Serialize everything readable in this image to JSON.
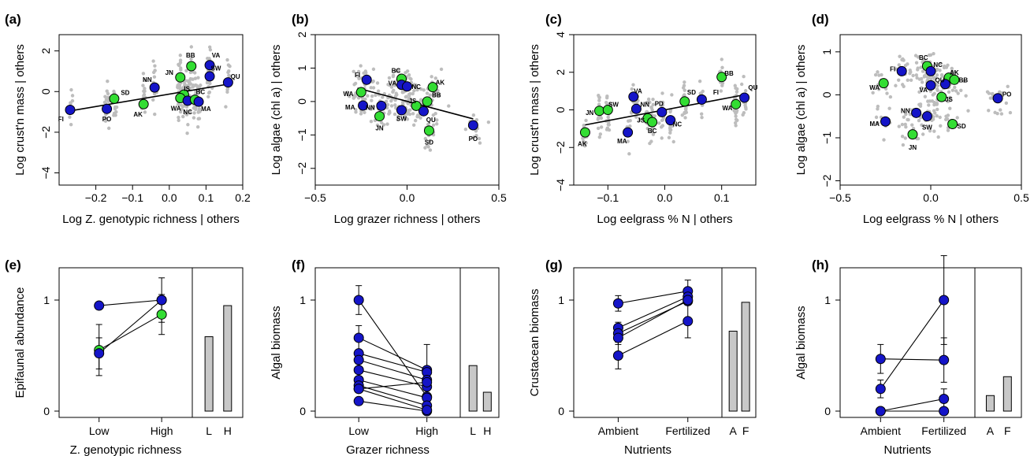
{
  "colors": {
    "blue": "#1515c8",
    "green": "#33dd33",
    "gray": "#bdbdbd",
    "bar": "#c8c8c8"
  },
  "chart_data": [
    {
      "panel": "(a)",
      "type": "scatter",
      "xlabel": "Log Z. genotypic richness | others",
      "ylabel": "Log crust'n mass | others",
      "xlim": [
        -0.3,
        0.2
      ],
      "ylim": [
        -4.6,
        2.8
      ],
      "xticks": [
        -0.2,
        -0.1,
        0.0,
        0.1,
        0.2
      ],
      "xticklabels": [
        "−0.2",
        "−0.1",
        "0.0",
        "0.1",
        "0.2"
      ],
      "yticks": [
        -4,
        -2,
        0,
        2
      ],
      "yticklabels": [
        "−4",
        "−2",
        "0",
        "2"
      ],
      "fit": [
        [
          -0.27,
          -0.95
        ],
        [
          0.155,
          0.35
        ]
      ],
      "points": [
        {
          "site": "FI",
          "x": -0.27,
          "y": -0.9,
          "color": "blue",
          "lx": -0.025,
          "ly": -0.45
        },
        {
          "site": "PO",
          "x": -0.17,
          "y": -0.85,
          "color": "blue",
          "lx": 0.0,
          "ly": -0.5
        },
        {
          "site": "SD",
          "x": -0.15,
          "y": -0.35,
          "color": "green",
          "lx": 0.03,
          "ly": 0.3
        },
        {
          "site": "AK",
          "x": -0.07,
          "y": -0.62,
          "color": "green",
          "lx": -0.015,
          "ly": -0.5
        },
        {
          "site": "NN",
          "x": -0.04,
          "y": 0.2,
          "color": "blue",
          "lx": -0.02,
          "ly": 0.4
        },
        {
          "site": "JN",
          "x": 0.03,
          "y": 0.7,
          "color": "green",
          "lx": -0.03,
          "ly": 0.25
        },
        {
          "site": "BB",
          "x": 0.06,
          "y": 1.25,
          "color": "green",
          "lx": -0.002,
          "ly": 0.55
        },
        {
          "site": "IS",
          "x": 0.04,
          "y": -0.15,
          "color": "green",
          "lx": 0.008,
          "ly": 0.3
        },
        {
          "site": "WA",
          "x": 0.03,
          "y": -0.32,
          "color": "green",
          "lx": -0.012,
          "ly": -0.5
        },
        {
          "site": "NC",
          "x": 0.05,
          "y": -0.45,
          "color": "blue",
          "lx": 0.0,
          "ly": -0.55
        },
        {
          "site": "BC",
          "x": 0.07,
          "y": -0.4,
          "color": "green",
          "lx": 0.015,
          "ly": 0.4
        },
        {
          "site": "MA",
          "x": 0.08,
          "y": -0.5,
          "color": "blue",
          "lx": 0.02,
          "ly": -0.35
        },
        {
          "site": "VA",
          "x": 0.11,
          "y": 1.3,
          "color": "blue",
          "lx": 0.017,
          "ly": 0.5
        },
        {
          "site": "SW",
          "x": 0.11,
          "y": 0.75,
          "color": "blue",
          "lx": 0.017,
          "ly": 0.4
        },
        {
          "site": "QU",
          "x": 0.16,
          "y": 0.45,
          "color": "blue",
          "lx": 0.02,
          "ly": 0.3
        }
      ]
    },
    {
      "panel": "(b)",
      "type": "scatter",
      "xlabel": "Log grazer richness | others",
      "ylabel": "Log algae (chl a) | others",
      "xlim": [
        -0.5,
        0.5
      ],
      "ylim": [
        -2.5,
        2.0
      ],
      "xticks": [
        -0.5,
        0.0,
        0.5
      ],
      "xticklabels": [
        "−0.5",
        "0.0",
        "0.5"
      ],
      "yticks": [
        -2,
        -1,
        0,
        1,
        2
      ],
      "yticklabels": [
        "−2",
        "−1",
        "0",
        "1",
        "2"
      ],
      "fit": [
        [
          -0.27,
          0.4
        ],
        [
          0.36,
          -0.52
        ]
      ],
      "points": [
        {
          "site": "FI",
          "x": -0.22,
          "y": 0.65,
          "color": "blue",
          "lx": -0.05,
          "ly": 0.15
        },
        {
          "site": "WA",
          "x": -0.25,
          "y": 0.28,
          "color": "green",
          "lx": -0.07,
          "ly": -0.05
        },
        {
          "site": "MA",
          "x": -0.24,
          "y": -0.12,
          "color": "blue",
          "lx": -0.07,
          "ly": -0.05
        },
        {
          "site": "BC",
          "x": -0.03,
          "y": 0.68,
          "color": "green",
          "lx": -0.03,
          "ly": 0.25
        },
        {
          "site": "VA",
          "x": -0.03,
          "y": 0.5,
          "color": "blue",
          "lx": -0.05,
          "ly": 0.05
        },
        {
          "site": "NC",
          "x": 0.0,
          "y": 0.45,
          "color": "blue",
          "lx": 0.05,
          "ly": 0.0
        },
        {
          "site": "AK",
          "x": 0.14,
          "y": 0.43,
          "color": "green",
          "lx": 0.04,
          "ly": 0.15
        },
        {
          "site": "BB",
          "x": 0.11,
          "y": 0.0,
          "color": "green",
          "lx": 0.05,
          "ly": 0.2
        },
        {
          "site": "NN",
          "x": -0.14,
          "y": -0.13,
          "color": "blue",
          "lx": -0.06,
          "ly": -0.05
        },
        {
          "site": "JS",
          "x": 0.05,
          "y": -0.13,
          "color": "green",
          "lx": -0.02,
          "ly": 0.15
        },
        {
          "site": "SW",
          "x": -0.03,
          "y": -0.26,
          "color": "blue",
          "lx": 0.0,
          "ly": -0.25
        },
        {
          "site": "JN",
          "x": -0.15,
          "y": -0.44,
          "color": "green",
          "lx": 0.0,
          "ly": -0.35
        },
        {
          "site": "QU",
          "x": 0.09,
          "y": -0.29,
          "color": "blue",
          "lx": 0.04,
          "ly": -0.25
        },
        {
          "site": "SD",
          "x": 0.12,
          "y": -0.87,
          "color": "green",
          "lx": 0.0,
          "ly": -0.35
        },
        {
          "site": "PO",
          "x": 0.36,
          "y": -0.71,
          "color": "blue",
          "lx": 0.0,
          "ly": -0.4
        }
      ]
    },
    {
      "panel": "(c)",
      "type": "scatter",
      "xlabel": "Log eelgrass % N | others",
      "ylabel": "Log crust'n mass | others",
      "xlim": [
        -0.16,
        0.16
      ],
      "ylim": [
        -4.0,
        4.0
      ],
      "xticks": [
        -0.1,
        0.0,
        0.1
      ],
      "xticklabels": [
        "−0.1",
        "0.0",
        "0.1"
      ],
      "yticks": [
        -4,
        -2,
        0,
        2,
        4
      ],
      "yticklabels": [
        "−4",
        "−2",
        "0",
        "2",
        "4"
      ],
      "fit": [
        [
          -0.14,
          -0.8
        ],
        [
          0.14,
          0.8
        ]
      ],
      "points": [
        {
          "site": "AK",
          "x": -0.14,
          "y": -1.2,
          "color": "green",
          "lx": -0.005,
          "ly": -0.6
        },
        {
          "site": "JN",
          "x": -0.115,
          "y": -0.05,
          "color": "green",
          "lx": -0.017,
          "ly": -0.1
        },
        {
          "site": "SW",
          "x": -0.1,
          "y": 0.0,
          "color": "green",
          "lx": 0.01,
          "ly": 0.3
        },
        {
          "site": "MA",
          "x": -0.065,
          "y": -1.2,
          "color": "blue",
          "lx": -0.01,
          "ly": -0.45
        },
        {
          "site": "VA",
          "x": -0.055,
          "y": 0.7,
          "color": "blue",
          "lx": 0.008,
          "ly": 0.3
        },
        {
          "site": "NN",
          "x": -0.05,
          "y": 0.05,
          "color": "blue",
          "lx": 0.015,
          "ly": 0.25
        },
        {
          "site": "JS",
          "x": -0.03,
          "y": -0.45,
          "color": "green",
          "lx": -0.012,
          "ly": -0.1
        },
        {
          "site": "BC",
          "x": -0.022,
          "y": -0.65,
          "color": "green",
          "lx": 0.0,
          "ly": -0.45
        },
        {
          "site": "PD",
          "x": -0.005,
          "y": -0.12,
          "color": "blue",
          "lx": -0.005,
          "ly": 0.45
        },
        {
          "site": "NC",
          "x": 0.01,
          "y": -0.55,
          "color": "blue",
          "lx": 0.012,
          "ly": -0.2
        },
        {
          "site": "SD",
          "x": 0.035,
          "y": 0.45,
          "color": "green",
          "lx": 0.012,
          "ly": 0.5
        },
        {
          "site": "FI",
          "x": 0.065,
          "y": 0.55,
          "color": "blue",
          "lx": 0.025,
          "ly": 0.4
        },
        {
          "site": "BB",
          "x": 0.1,
          "y": 1.75,
          "color": "green",
          "lx": 0.013,
          "ly": 0.2
        },
        {
          "site": "WA",
          "x": 0.125,
          "y": 0.3,
          "color": "green",
          "lx": -0.015,
          "ly": -0.2
        },
        {
          "site": "QU",
          "x": 0.14,
          "y": 0.65,
          "color": "blue",
          "lx": 0.015,
          "ly": 0.55
        }
      ]
    },
    {
      "panel": "(d)",
      "type": "scatter",
      "xlabel": "Log eelgrass % N | others",
      "ylabel": "Log algae (chl a) | others",
      "xlim": [
        -0.5,
        0.5
      ],
      "ylim": [
        -2.1,
        1.4
      ],
      "xticks": [
        -0.5,
        0.0,
        0.5
      ],
      "xticklabels": [
        "−0.5",
        "0.0",
        "0.5"
      ],
      "yticks": [
        -2,
        -1,
        0,
        1
      ],
      "yticklabels": [
        "−2",
        "−1",
        "0",
        "1"
      ],
      "fit": [],
      "points": [
        {
          "site": "FI",
          "x": -0.16,
          "y": 0.55,
          "color": "blue",
          "lx": -0.05,
          "ly": 0.05
        },
        {
          "site": "WA",
          "x": -0.26,
          "y": 0.27,
          "color": "green",
          "lx": -0.05,
          "ly": -0.1
        },
        {
          "site": "BC",
          "x": -0.02,
          "y": 0.67,
          "color": "green",
          "lx": -0.02,
          "ly": 0.2
        },
        {
          "site": "NC",
          "x": 0.0,
          "y": 0.55,
          "color": "blue",
          "lx": 0.04,
          "ly": 0.15
        },
        {
          "site": "AK",
          "x": 0.1,
          "y": 0.4,
          "color": "green",
          "lx": 0.03,
          "ly": 0.12
        },
        {
          "site": "BB",
          "x": 0.13,
          "y": 0.35,
          "color": "green",
          "lx": 0.05,
          "ly": 0.0
        },
        {
          "site": "QU",
          "x": 0.08,
          "y": 0.25,
          "color": "blue",
          "lx": -0.03,
          "ly": 0.1
        },
        {
          "site": "VA",
          "x": 0.0,
          "y": 0.22,
          "color": "blue",
          "lx": -0.04,
          "ly": -0.1
        },
        {
          "site": "JS",
          "x": 0.06,
          "y": -0.05,
          "color": "green",
          "lx": 0.04,
          "ly": -0.05
        },
        {
          "site": "NN",
          "x": -0.08,
          "y": -0.42,
          "color": "blue",
          "lx": -0.06,
          "ly": 0.05
        },
        {
          "site": "SW",
          "x": -0.02,
          "y": -0.5,
          "color": "blue",
          "lx": 0.0,
          "ly": -0.25
        },
        {
          "site": "MA",
          "x": -0.25,
          "y": -0.62,
          "color": "blue",
          "lx": -0.06,
          "ly": -0.05
        },
        {
          "site": "JN",
          "x": -0.1,
          "y": -0.92,
          "color": "green",
          "lx": 0.0,
          "ly": -0.3
        },
        {
          "site": "SD",
          "x": 0.12,
          "y": -0.68,
          "color": "green",
          "lx": 0.05,
          "ly": -0.05
        },
        {
          "site": "PO",
          "x": 0.37,
          "y": -0.08,
          "color": "blue",
          "lx": 0.05,
          "ly": 0.1
        }
      ]
    },
    {
      "panel": "(e)",
      "type": "dot-bar",
      "xlabel": "Z. genotypic richness",
      "ylabel": "Epifaunal abundance",
      "categories": [
        "Low",
        "High"
      ],
      "yticks": [
        0,
        1
      ],
      "yticklabels": [
        "0",
        "1"
      ],
      "ylim": [
        -0.05,
        1.3
      ],
      "series": [
        {
          "color": "blue",
          "values": [
            0.95,
            1.0
          ],
          "err": [
            0.0,
            0.0
          ]
        },
        {
          "color": "green",
          "values": [
            0.55,
            0.87
          ],
          "err": [
            0.23,
            0.18
          ]
        },
        {
          "color": "blue",
          "values": [
            0.52,
            1.0
          ],
          "err": [
            0.14,
            0.2
          ]
        }
      ],
      "bars": {
        "labels": [
          "L",
          "H"
        ],
        "values": [
          0.67,
          0.95
        ]
      }
    },
    {
      "panel": "(f)",
      "type": "dot-bar",
      "xlabel": "Grazer richness",
      "ylabel": "Algal biomass",
      "categories": [
        "Low",
        "High"
      ],
      "yticks": [
        0,
        1
      ],
      "yticklabels": [
        "0",
        "1"
      ],
      "ylim": [
        -0.05,
        1.3
      ],
      "series": [
        {
          "color": "blue",
          "values": [
            1.0,
            0.13
          ],
          "err": [
            0.13,
            0.0
          ]
        },
        {
          "color": "blue",
          "values": [
            0.66,
            0.37
          ],
          "err": [
            0.11,
            0.23
          ]
        },
        {
          "color": "blue",
          "values": [
            0.52,
            0.35
          ],
          "err": [
            0.0,
            0.0
          ]
        },
        {
          "color": "blue",
          "values": [
            0.46,
            0.28
          ],
          "err": [
            0.07,
            0.0
          ]
        },
        {
          "color": "blue",
          "values": [
            0.37,
            0.22
          ],
          "err": [
            0.0,
            0.0
          ]
        },
        {
          "color": "blue",
          "values": [
            0.28,
            0.12
          ],
          "err": [
            0.0,
            0.0
          ]
        },
        {
          "color": "blue",
          "values": [
            0.23,
            0.05
          ],
          "err": [
            0.0,
            0.0
          ]
        },
        {
          "color": "blue",
          "values": [
            0.2,
            0.26
          ],
          "err": [
            0.0,
            0.0
          ]
        },
        {
          "color": "blue",
          "values": [
            0.09,
            0.0
          ],
          "err": [
            0.0,
            0.0
          ]
        },
        {
          "color": "blue",
          "values": [
            0.2,
            0.01
          ],
          "err": [
            0.0,
            0.0
          ]
        }
      ],
      "bars": {
        "labels": [
          "L",
          "H"
        ],
        "values": [
          0.41,
          0.17
        ]
      }
    },
    {
      "panel": "(g)",
      "type": "dot-bar",
      "xlabel": "Nutrients",
      "ylabel": "Crustacean biomass",
      "categories": [
        "Ambient",
        "Fertilized"
      ],
      "yticks": [
        0,
        1
      ],
      "yticklabels": [
        "0",
        "1"
      ],
      "ylim": [
        -0.05,
        1.3
      ],
      "series": [
        {
          "color": "blue",
          "values": [
            0.97,
            1.08
          ],
          "err": [
            0.07,
            0.1
          ]
        },
        {
          "color": "blue",
          "values": [
            0.75,
            1.03
          ],
          "err": [
            0.05,
            0.0
          ]
        },
        {
          "color": "blue",
          "values": [
            0.7,
            0.99
          ],
          "err": [
            0.0,
            0.0
          ]
        },
        {
          "color": "blue",
          "values": [
            0.66,
            1.0
          ],
          "err": [
            0.06,
            0.0
          ]
        },
        {
          "color": "blue",
          "values": [
            0.5,
            0.81
          ],
          "err": [
            0.12,
            0.15
          ]
        }
      ],
      "bars": {
        "labels": [
          "A",
          "F"
        ],
        "values": [
          0.72,
          0.98
        ]
      }
    },
    {
      "panel": "(h)",
      "type": "dot-bar",
      "xlabel": "Nutrients",
      "ylabel": "Algal biomass",
      "categories": [
        "Ambient",
        "Fertilized"
      ],
      "yticks": [
        0,
        1
      ],
      "yticklabels": [
        "0",
        "1"
      ],
      "ylim": [
        -0.05,
        1.3
      ],
      "series": [
        {
          "color": "blue",
          "values": [
            0.47,
            0.46
          ],
          "err": [
            0.13,
            0.2
          ]
        },
        {
          "color": "blue",
          "values": [
            0.2,
            1.0
          ],
          "err": [
            0.08,
            0.4
          ]
        },
        {
          "color": "blue",
          "values": [
            0.0,
            0.11
          ],
          "err": [
            0.0,
            0.09
          ]
        },
        {
          "color": "blue",
          "values": [
            0.0,
            0.0
          ],
          "err": [
            0.0,
            0.0
          ]
        }
      ],
      "bars": {
        "labels": [
          "A",
          "F"
        ],
        "values": [
          0.14,
          0.31
        ]
      }
    }
  ]
}
